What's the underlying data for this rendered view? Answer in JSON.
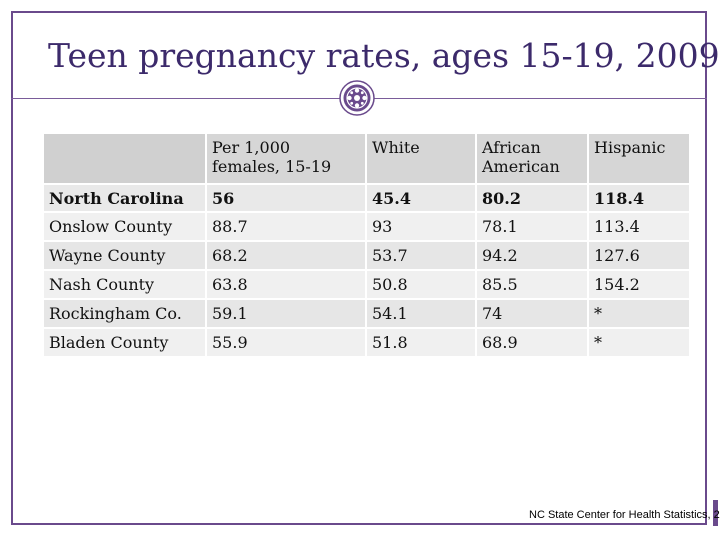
{
  "title": "Teen pregnancy rates, ages 15-19, 2009",
  "table": {
    "headers": [
      "",
      "Per 1,000 females, 15-19",
      "White",
      "African American",
      "Hispanic"
    ],
    "rows": [
      [
        "North Carolina",
        "56",
        "45.4",
        "80.2",
        "118.4"
      ],
      [
        "Onslow County",
        "88.7",
        "93",
        "78.1",
        "113.4"
      ],
      [
        "Wayne County",
        "68.2",
        "53.7",
        "94.2",
        "127.6"
      ],
      [
        "Nash County",
        "63.8",
        "50.8",
        "85.5",
        "154.2"
      ],
      [
        "Rockingham Co.",
        "59.1",
        "54.1",
        "74",
        "*"
      ],
      [
        "Bladen County",
        "55.9",
        "51.8",
        "68.9",
        "*"
      ]
    ]
  },
  "source": "NC State Center for Health Statistics, 2",
  "colors": {
    "frame": "#6a4a8c",
    "title": "#3c2a6b",
    "header_bg": "#d6d6d6",
    "row_bg": "#f0f0f0"
  },
  "icons": {
    "emblem": "ornament-emblem-icon"
  }
}
